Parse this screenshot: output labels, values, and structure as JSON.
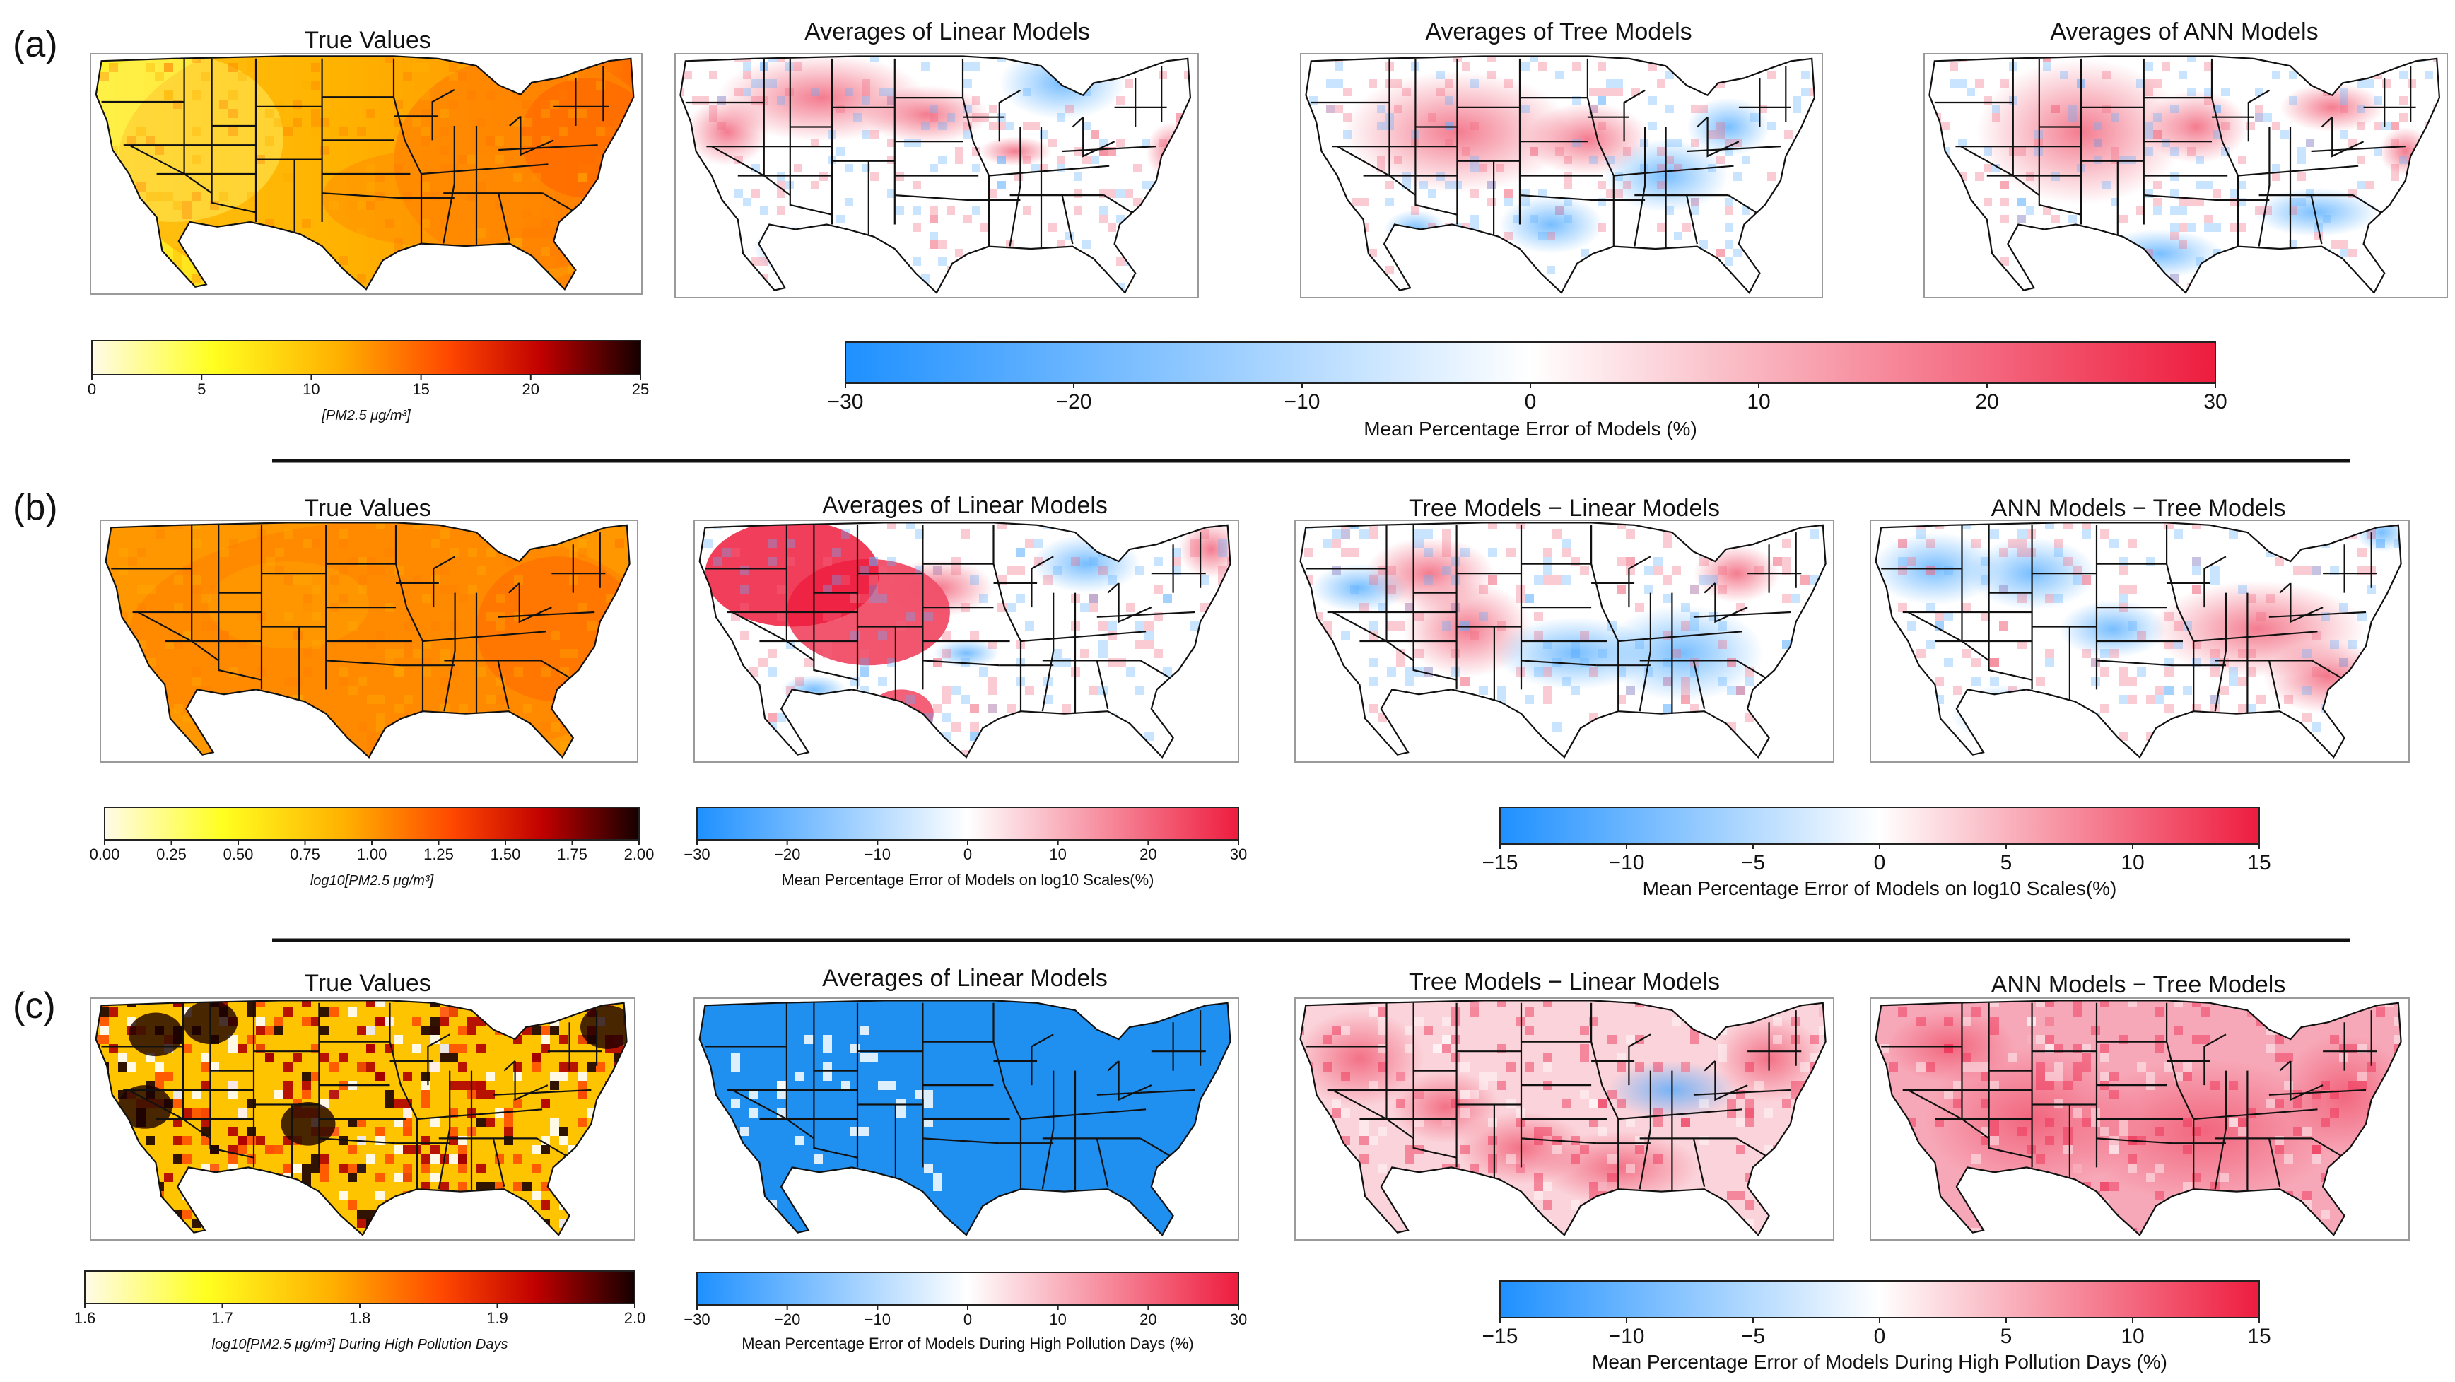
{
  "figure": {
    "rows": [
      {
        "label": "(a)",
        "titles": [
          "True Values",
          "Averages of Linear Models",
          "Averages of Tree Models",
          "Averages of ANN Models"
        ],
        "colorbars": [
          {
            "name": "true-colorbar",
            "ticks": [
              "0",
              "5",
              "10",
              "15",
              "20",
              "25"
            ],
            "label": "[PM2.5 μg/m³]",
            "colormap": "hot-reversed"
          },
          {
            "name": "error-colorbar",
            "ticks": [
              "−30",
              "−20",
              "−10",
              "0",
              "10",
              "20",
              "30"
            ],
            "label": "Mean Percentage Error of Models (%)",
            "colormap": "blue-white-red"
          }
        ]
      },
      {
        "label": "(b)",
        "titles": [
          "True Values",
          "Averages of Linear Models",
          "Tree Models − Linear Models",
          "ANN Models − Tree Models"
        ],
        "colorbars": [
          {
            "name": "true-colorbar",
            "ticks": [
              "0.00",
              "0.25",
              "0.50",
              "0.75",
              "1.00",
              "1.25",
              "1.50",
              "1.75",
              "2.00"
            ],
            "label": "log10[PM2.5 μg/m³]",
            "colormap": "hot-reversed"
          },
          {
            "name": "linear-error-colorbar",
            "ticks": [
              "−30",
              "−20",
              "−10",
              "0",
              "10",
              "20",
              "30"
            ],
            "label": "Mean Percentage Error of Models on log10 Scales(%)",
            "colormap": "blue-white-red"
          },
          {
            "name": "difference-colorbar",
            "ticks": [
              "−15",
              "−10",
              "−5",
              "0",
              "5",
              "10",
              "15"
            ],
            "label": "Mean Percentage Error of Models on log10 Scales(%)",
            "colormap": "blue-white-red"
          }
        ]
      },
      {
        "label": "(c)",
        "titles": [
          "True Values",
          "Averages of Linear Models",
          "Tree Models − Linear Models",
          "ANN Models − Tree Models"
        ],
        "colorbars": [
          {
            "name": "true-colorbar",
            "ticks": [
              "1.6",
              "1.7",
              "1.8",
              "1.9",
              "2.0"
            ],
            "label": "log10[PM2.5 μg/m³] During High Pollution Days",
            "colormap": "hot-reversed"
          },
          {
            "name": "linear-error-colorbar",
            "ticks": [
              "−30",
              "−20",
              "−10",
              "0",
              "10",
              "20",
              "30"
            ],
            "label": "Mean Percentage Error of Models During High Pollution Days (%)",
            "colormap": "blue-white-red"
          },
          {
            "name": "difference-colorbar",
            "ticks": [
              "−15",
              "−10",
              "−5",
              "0",
              "5",
              "10",
              "15"
            ],
            "label": "Mean Percentage Error of Models During High Pollution Days (%)",
            "colormap": "blue-white-red"
          }
        ]
      }
    ]
  },
  "colors": {
    "hot_reversed": [
      "#ffffff",
      "#ffff00",
      "#ffa500",
      "#ff4000",
      "#cc0000",
      "#000000"
    ],
    "blue_white_red": [
      "#1e90ff",
      "#ffffff",
      "#ee1c3e"
    ]
  }
}
